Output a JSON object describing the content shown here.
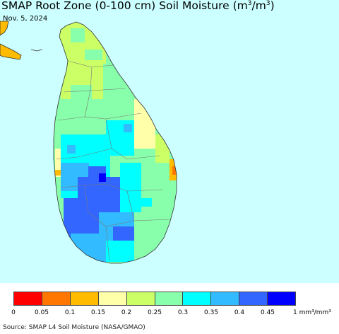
{
  "title": {
    "main": "SMAP Root Zone (0-100 cm) Soil Moisture (m",
    "sup1": "3",
    "mid": "/m",
    "sup2": "3",
    "end": ")"
  },
  "date": "Nov. 5, 2024",
  "colors": {
    "ocean": "#ccffff",
    "border": "#555555"
  },
  "legend": {
    "colors": [
      "#ff0000",
      "#ff7700",
      "#ffbb00",
      "#ffffaa",
      "#ccff66",
      "#88ffaa",
      "#00ffff",
      "#33bbff",
      "#3366ff",
      "#0000ff"
    ],
    "ticks": [
      "0",
      "0.05",
      "0.1",
      "0.15",
      "0.2",
      "0.25",
      "0.3",
      "0.35",
      "0.4",
      "0.45",
      "1"
    ],
    "unit": "mm³/mm³"
  },
  "source": "Source: SMAP L4 Soil Moisture (NASA/GMAO)"
}
